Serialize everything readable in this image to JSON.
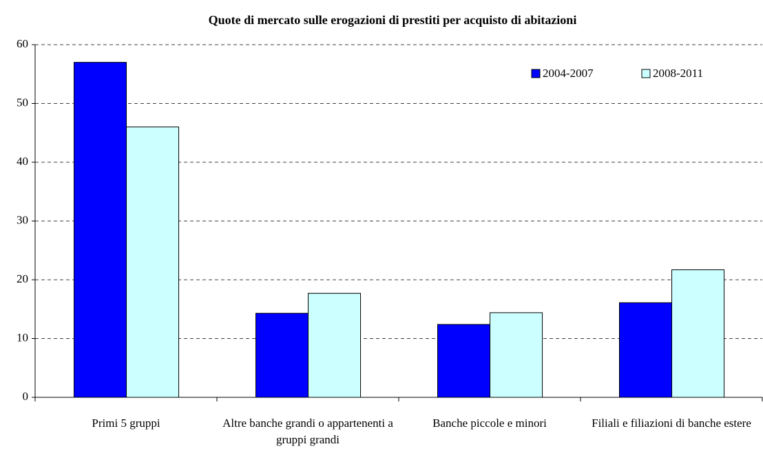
{
  "chart_data": {
    "type": "bar",
    "title": "Quote di mercato sulle erogazioni di prestiti per acquisto di abitazioni",
    "categories": [
      "Primi 5 gruppi",
      "Altre banche grandi o appartenenti a gruppi grandi",
      "Banche piccole e minori",
      "Filiali e filiazioni di banche estere"
    ],
    "series": [
      {
        "name": "2004-2007",
        "color": "#0000ff",
        "values": [
          57,
          14.3,
          12.4,
          16.1
        ]
      },
      {
        "name": "2008-2011",
        "color": "#ccffff",
        "values": [
          46,
          17.7,
          14.4,
          21.7
        ]
      }
    ],
    "ylim": [
      0,
      60
    ],
    "yticks": [
      0,
      10,
      20,
      30,
      40,
      50,
      60
    ],
    "grid": true,
    "legend": "top-right"
  }
}
